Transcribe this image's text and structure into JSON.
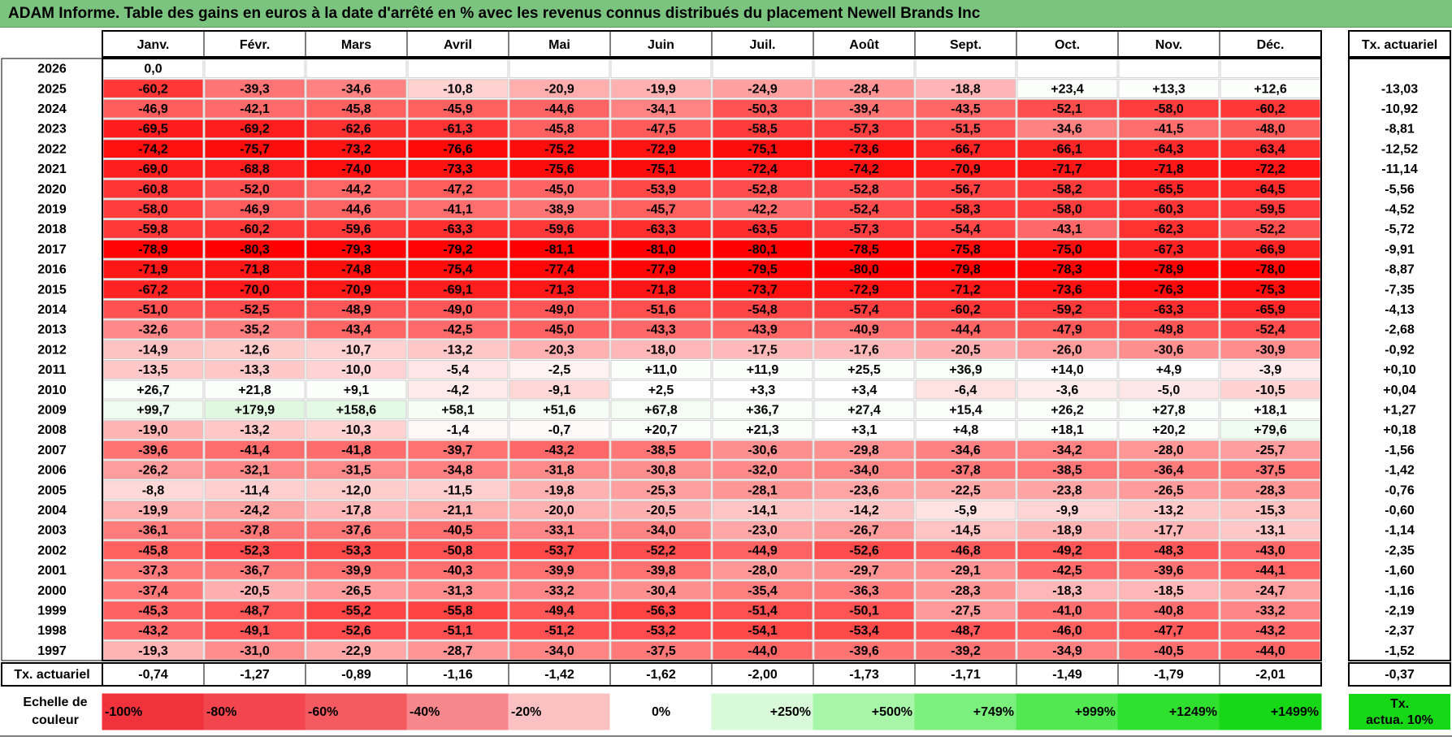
{
  "title": "ADAM Informe. Table des gains en euros à la date d'arrêté en % avec les revenus connus distribués du placement Newell Brands Inc",
  "chart_data": {
    "type": "heatmap",
    "title": "ADAM Informe. Table des gains en euros à la date d'arrêté en % avec les revenus connus distribués du placement Newell Brands Inc",
    "columns": [
      "Janv.",
      "Févr.",
      "Mars",
      "Avril",
      "Mai",
      "Juin",
      "Juil.",
      "Août",
      "Sept.",
      "Oct.",
      "Nov.",
      "Déc."
    ],
    "rate_header": "Tx. actuariel",
    "rows": [
      {
        "year": "2026",
        "values": [
          "0,0",
          "",
          "",
          "",
          "",
          "",
          "",
          "",
          "",
          "",
          "",
          ""
        ],
        "rate": ""
      },
      {
        "year": "2025",
        "values": [
          "-60,2",
          "-39,3",
          "-34,6",
          "-10,8",
          "-20,9",
          "-19,9",
          "-24,9",
          "-28,4",
          "-18,8",
          "+23,4",
          "+13,3",
          "+12,6"
        ],
        "rate": "-13,03"
      },
      {
        "year": "2024",
        "values": [
          "-46,9",
          "-42,1",
          "-45,8",
          "-45,9",
          "-44,6",
          "-34,1",
          "-50,3",
          "-39,4",
          "-43,5",
          "-52,1",
          "-58,0",
          "-60,2"
        ],
        "rate": "-10,92"
      },
      {
        "year": "2023",
        "values": [
          "-69,5",
          "-69,2",
          "-62,6",
          "-61,3",
          "-45,8",
          "-47,5",
          "-58,5",
          "-57,3",
          "-51,5",
          "-34,6",
          "-41,5",
          "-48,0"
        ],
        "rate": "-8,81"
      },
      {
        "year": "2022",
        "values": [
          "-74,2",
          "-75,7",
          "-73,2",
          "-76,6",
          "-75,2",
          "-72,9",
          "-75,1",
          "-73,6",
          "-66,7",
          "-66,1",
          "-64,3",
          "-63,4"
        ],
        "rate": "-12,52"
      },
      {
        "year": "2021",
        "values": [
          "-69,0",
          "-68,8",
          "-74,0",
          "-73,3",
          "-75,6",
          "-75,1",
          "-72,4",
          "-74,2",
          "-70,9",
          "-71,7",
          "-71,8",
          "-72,2"
        ],
        "rate": "-11,14"
      },
      {
        "year": "2020",
        "values": [
          "-60,8",
          "-52,0",
          "-44,2",
          "-47,2",
          "-45,0",
          "-53,9",
          "-52,8",
          "-52,8",
          "-56,7",
          "-58,2",
          "-65,5",
          "-64,5"
        ],
        "rate": "-5,56"
      },
      {
        "year": "2019",
        "values": [
          "-58,0",
          "-46,9",
          "-44,6",
          "-41,1",
          "-38,9",
          "-45,7",
          "-42,2",
          "-52,4",
          "-58,3",
          "-58,0",
          "-60,3",
          "-59,5"
        ],
        "rate": "-4,52"
      },
      {
        "year": "2018",
        "values": [
          "-59,8",
          "-60,2",
          "-59,6",
          "-63,3",
          "-59,6",
          "-63,3",
          "-63,5",
          "-57,3",
          "-54,4",
          "-43,1",
          "-62,3",
          "-52,2"
        ],
        "rate": "-5,72"
      },
      {
        "year": "2017",
        "values": [
          "-78,9",
          "-80,3",
          "-79,3",
          "-79,2",
          "-81,1",
          "-81,0",
          "-80,1",
          "-78,5",
          "-75,8",
          "-75,0",
          "-67,3",
          "-66,9"
        ],
        "rate": "-9,91"
      },
      {
        "year": "2016",
        "values": [
          "-71,9",
          "-71,8",
          "-74,8",
          "-75,4",
          "-77,4",
          "-77,9",
          "-79,5",
          "-80,0",
          "-79,8",
          "-78,3",
          "-78,9",
          "-78,0"
        ],
        "rate": "-8,87"
      },
      {
        "year": "2015",
        "values": [
          "-67,2",
          "-70,0",
          "-70,9",
          "-69,1",
          "-71,3",
          "-71,8",
          "-73,7",
          "-72,9",
          "-71,2",
          "-73,6",
          "-76,3",
          "-75,3"
        ],
        "rate": "-7,35"
      },
      {
        "year": "2014",
        "values": [
          "-51,0",
          "-52,5",
          "-48,9",
          "-49,0",
          "-49,0",
          "-51,6",
          "-54,8",
          "-57,4",
          "-60,2",
          "-59,2",
          "-63,3",
          "-65,9"
        ],
        "rate": "-4,13"
      },
      {
        "year": "2013",
        "values": [
          "-32,6",
          "-35,2",
          "-43,4",
          "-42,5",
          "-45,0",
          "-43,3",
          "-43,9",
          "-40,9",
          "-44,4",
          "-47,9",
          "-49,8",
          "-52,4"
        ],
        "rate": "-2,68"
      },
      {
        "year": "2012",
        "values": [
          "-14,9",
          "-12,6",
          "-10,7",
          "-13,2",
          "-20,3",
          "-18,0",
          "-17,5",
          "-17,6",
          "-20,5",
          "-26,0",
          "-30,6",
          "-30,9"
        ],
        "rate": "-0,92"
      },
      {
        "year": "2011",
        "values": [
          "-13,5",
          "-13,3",
          "-10,0",
          "-5,4",
          "-2,5",
          "+11,0",
          "+11,9",
          "+25,5",
          "+36,9",
          "+14,0",
          "+4,9",
          "-3,9"
        ],
        "rate": "+0,10"
      },
      {
        "year": "2010",
        "values": [
          "+26,7",
          "+21,8",
          "+9,1",
          "-4,2",
          "-9,1",
          "+2,5",
          "+3,3",
          "+3,4",
          "-6,4",
          "-3,6",
          "-5,0",
          "-10,5"
        ],
        "rate": "+0,04"
      },
      {
        "year": "2009",
        "values": [
          "+99,7",
          "+179,9",
          "+158,6",
          "+58,1",
          "+51,6",
          "+67,8",
          "+36,7",
          "+27,4",
          "+15,4",
          "+26,2",
          "+27,8",
          "+18,1"
        ],
        "rate": "+1,27"
      },
      {
        "year": "2008",
        "values": [
          "-19,0",
          "-13,2",
          "-10,3",
          "-1,4",
          "-0,7",
          "+20,7",
          "+21,3",
          "+3,1",
          "+4,8",
          "+18,1",
          "+20,2",
          "+79,6"
        ],
        "rate": "+0,18"
      },
      {
        "year": "2007",
        "values": [
          "-39,6",
          "-41,4",
          "-41,8",
          "-39,7",
          "-43,2",
          "-38,5",
          "-30,6",
          "-29,8",
          "-34,6",
          "-34,2",
          "-28,0",
          "-25,7"
        ],
        "rate": "-1,56"
      },
      {
        "year": "2006",
        "values": [
          "-26,2",
          "-32,1",
          "-31,5",
          "-34,8",
          "-31,8",
          "-30,8",
          "-32,0",
          "-34,0",
          "-37,8",
          "-38,5",
          "-36,4",
          "-37,5"
        ],
        "rate": "-1,42"
      },
      {
        "year": "2005",
        "values": [
          "-8,8",
          "-11,4",
          "-12,0",
          "-11,5",
          "-19,8",
          "-25,3",
          "-28,1",
          "-23,6",
          "-22,5",
          "-23,8",
          "-26,5",
          "-28,3"
        ],
        "rate": "-0,76"
      },
      {
        "year": "2004",
        "values": [
          "-19,9",
          "-24,2",
          "-17,8",
          "-21,1",
          "-20,0",
          "-20,5",
          "-14,1",
          "-14,2",
          "-5,9",
          "-9,9",
          "-13,2",
          "-15,3"
        ],
        "rate": "-0,60"
      },
      {
        "year": "2003",
        "values": [
          "-36,1",
          "-37,8",
          "-37,6",
          "-40,5",
          "-33,1",
          "-34,0",
          "-23,0",
          "-26,7",
          "-14,5",
          "-18,9",
          "-17,7",
          "-13,1"
        ],
        "rate": "-1,14"
      },
      {
        "year": "2002",
        "values": [
          "-45,8",
          "-52,3",
          "-53,3",
          "-50,8",
          "-53,7",
          "-52,2",
          "-44,9",
          "-52,6",
          "-46,8",
          "-49,2",
          "-48,3",
          "-43,0"
        ],
        "rate": "-2,35"
      },
      {
        "year": "2001",
        "values": [
          "-37,3",
          "-36,7",
          "-39,9",
          "-40,3",
          "-39,9",
          "-39,8",
          "-28,0",
          "-29,7",
          "-29,1",
          "-42,5",
          "-39,6",
          "-44,1"
        ],
        "rate": "-1,60"
      },
      {
        "year": "2000",
        "values": [
          "-37,4",
          "-20,5",
          "-26,5",
          "-31,3",
          "-33,2",
          "-30,4",
          "-35,4",
          "-36,3",
          "-28,3",
          "-18,3",
          "-18,5",
          "-24,7"
        ],
        "rate": "-1,16"
      },
      {
        "year": "1999",
        "values": [
          "-45,3",
          "-48,7",
          "-55,2",
          "-55,8",
          "-49,4",
          "-56,3",
          "-51,4",
          "-50,1",
          "-27,5",
          "-41,0",
          "-40,8",
          "-33,2"
        ],
        "rate": "-2,19"
      },
      {
        "year": "1998",
        "values": [
          "-43,2",
          "-49,1",
          "-52,6",
          "-51,1",
          "-51,2",
          "-53,2",
          "-54,1",
          "-53,4",
          "-48,7",
          "-46,0",
          "-47,7",
          "-43,2"
        ],
        "rate": "-2,37"
      },
      {
        "year": "1997",
        "values": [
          "-19,3",
          "-31,0",
          "-22,9",
          "-28,7",
          "-34,0",
          "-37,5",
          "-44,0",
          "-39,6",
          "-39,2",
          "-34,9",
          "-40,5",
          "-44,0"
        ],
        "rate": "-1,52"
      }
    ],
    "footer": {
      "label": "Tx. actuariel",
      "values": [
        "-0,74",
        "-1,27",
        "-0,89",
        "-1,16",
        "-1,42",
        "-1,62",
        "-2,00",
        "-1,73",
        "-1,71",
        "-1,49",
        "-1,79",
        "-2,01"
      ],
      "rate": "-0,37"
    },
    "scale": {
      "label_line1": "Echelle de",
      "label_line2": "couleur",
      "items": [
        {
          "text": "-100%",
          "color": "#f0323c",
          "align": "left"
        },
        {
          "text": "-80%",
          "color": "#f2454d",
          "align": "left"
        },
        {
          "text": "-60%",
          "color": "#f45a60",
          "align": "left"
        },
        {
          "text": "-40%",
          "color": "#f7878b",
          "align": "left"
        },
        {
          "text": "-20%",
          "color": "#fbc0c2",
          "align": "left"
        },
        {
          "text": "0%",
          "color": "#ffffff",
          "align": "center"
        },
        {
          "text": "+250%",
          "color": "#d8fad8",
          "align": "right"
        },
        {
          "text": "+500%",
          "color": "#a8f6a8",
          "align": "right"
        },
        {
          "text": "+749%",
          "color": "#7cf07c",
          "align": "right"
        },
        {
          "text": "+999%",
          "color": "#52e852",
          "align": "right"
        },
        {
          "text": "+1249%",
          "color": "#2fe02f",
          "align": "right"
        },
        {
          "text": "+1499%",
          "color": "#17d817",
          "align": "right"
        }
      ],
      "rate_line1": "Tx.",
      "rate_line2": "actua. 10%",
      "rate_color": "#17d817"
    }
  }
}
